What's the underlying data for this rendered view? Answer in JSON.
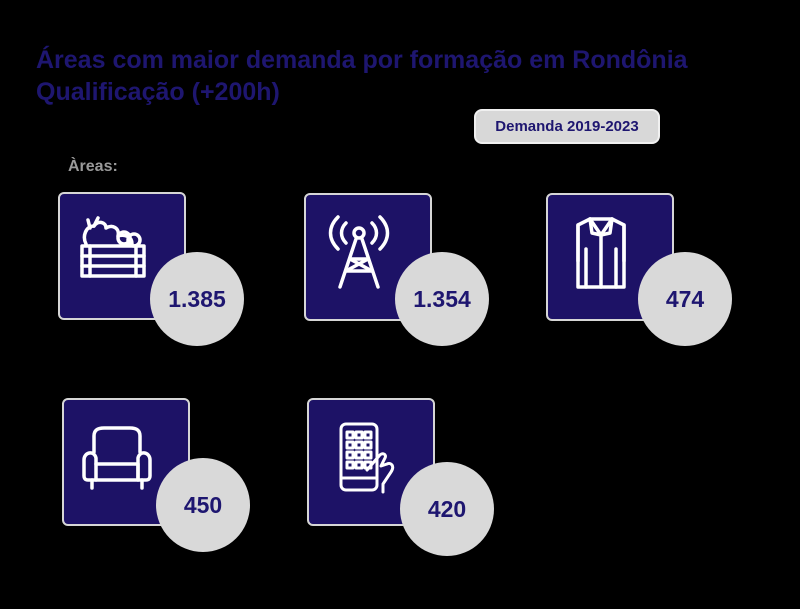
{
  "title_line1": "Áreas com maior demanda por formação em Rondônia",
  "title_line2": "Qualificação (+200h)",
  "legend_badge": "Demanda 2019-2023",
  "areas_label": "Àreas:",
  "colors": {
    "tile_bg": "#1d1266",
    "bubble_bg": "#d9d9d9",
    "text_dark": "#1e1670",
    "background": "#000000"
  },
  "chart_data": {
    "type": "bar",
    "title": "Áreas com maior demanda por formação em Rondônia",
    "subtitle": "Qualificação (+200h)",
    "legend": [
      "Demanda 2019-2023"
    ],
    "categories": [
      "vegetable-crate-icon",
      "radio-tower-icon",
      "shirt-icon",
      "armchair-icon",
      "smartphone-icon"
    ],
    "values": [
      1385,
      1354,
      474,
      450,
      420
    ],
    "value_labels": [
      "1.385",
      "1.354",
      "474",
      "450",
      "420"
    ]
  }
}
